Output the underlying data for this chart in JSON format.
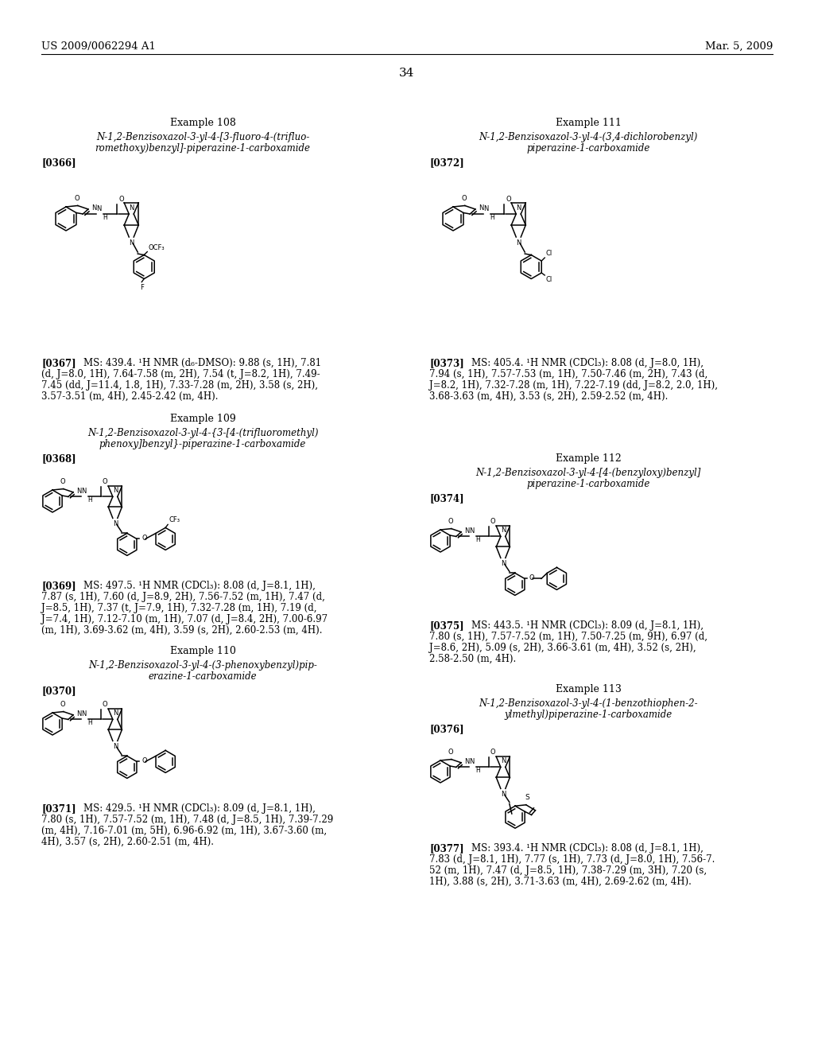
{
  "bg_color": "#ffffff",
  "header_left": "US 2009/0062294 A1",
  "header_right": "Mar. 5, 2009",
  "page_number": "34",
  "left_examples": [
    {
      "id": "108",
      "title": "Example 108",
      "name_lines": [
        "N-1,2-Benzisoxazol-3-yl-4-[3-fluoro-4-(trifluo-",
        "romethoxy)benzyl]-piperazine-1-carboxamide"
      ],
      "ref": "[0366]",
      "nmr_ref": "[0367]",
      "nmr_lines": [
        "[0367]  MS: 439.4. ¹H NMR (d₆-DMSO): 9.88 (s, 1H), 7.81",
        "(d, J=8.0, 1H), 7.64-7.58 (m, 2H), 7.54 (t, J=8.2, 1H), 7.49-",
        "7.45 (dd, J=11.4, 1.8, 1H), 7.33-7.28 (m, 2H), 3.58 (s, 2H),",
        "3.57-3.51 (m, 4H), 2.45-2.42 (m, 4H)."
      ]
    },
    {
      "id": "109",
      "title": "Example 109",
      "name_lines": [
        "N-1,2-Benzisoxazol-3-yl-4-{3-[4-(trifluoromethyl)",
        "phenoxy]benzyl}-piperazine-1-carboxamide"
      ],
      "ref": "[0368]",
      "nmr_ref": "[0369]",
      "nmr_lines": [
        "[0369]  MS: 497.5. ¹H NMR (CDCl₃): 8.08 (d, J=8.1, 1H),",
        "7.87 (s, 1H), 7.60 (d, J=8.9, 2H), 7.56-7.52 (m, 1H), 7.47 (d,",
        "J=8.5, 1H), 7.37 (t, J=7.9, 1H), 7.32-7.28 (m, 1H), 7.19 (d,",
        "J=7.4, 1H), 7.12-7.10 (m, 1H), 7.07 (d, J=8.4, 2H), 7.00-6.97",
        "(m, 1H), 3.69-3.62 (m, 4H), 3.59 (s, 2H), 2.60-2.53 (m, 4H)."
      ]
    },
    {
      "id": "110",
      "title": "Example 110",
      "name_lines": [
        "N-1,2-Benzisoxazol-3-yl-4-(3-phenoxybenzyl)pip-",
        "erazine-1-carboxamide"
      ],
      "ref": "[0370]",
      "nmr_ref": "[0371]",
      "nmr_lines": [
        "[0371]  MS: 429.5. ¹H NMR (CDCl₃): 8.09 (d, J=8.1, 1H),",
        "7.80 (s, 1H), 7.57-7.52 (m, 1H), 7.48 (d, J=8.5, 1H), 7.39-7.29",
        "(m, 4H), 7.16-7.01 (m, 5H), 6.96-6.92 (m, 1H), 3.67-3.60 (m,",
        "4H), 3.57 (s, 2H), 2.60-2.51 (m, 4H)."
      ]
    }
  ],
  "right_examples": [
    {
      "id": "111",
      "title": "Example 111",
      "name_lines": [
        "N-1,2-Benzisoxazol-3-yl-4-(3,4-dichlorobenzyl)",
        "piperazine-1-carboxamide"
      ],
      "ref": "[0372]",
      "nmr_ref": "[0373]",
      "nmr_lines": [
        "[0373]  MS: 405.4. ¹H NMR (CDCl₃): 8.08 (d, J=8.0, 1H),",
        "7.94 (s, 1H), 7.57-7.53 (m, 1H), 7.50-7.46 (m, 2H), 7.43 (d,",
        "J=8.2, 1H), 7.32-7.28 (m, 1H), 7.22-7.19 (dd, J=8.2, 2.0, 1H),",
        "3.68-3.63 (m, 4H), 3.53 (s, 2H), 2.59-2.52 (m, 4H)."
      ]
    },
    {
      "id": "112",
      "title": "Example 112",
      "name_lines": [
        "N-1,2-Benzisoxazol-3-yl-4-[4-(benzyloxy)benzyl]",
        "piperazine-1-carboxamide"
      ],
      "ref": "[0374]",
      "nmr_ref": "[0375]",
      "nmr_lines": [
        "[0375]  MS: 443.5. ¹H NMR (CDCl₃): 8.09 (d, J=8.1, 1H),",
        "7.80 (s, 1H), 7.57-7.52 (m, 1H), 7.50-7.25 (m, 9H), 6.97 (d,",
        "J=8.6, 2H), 5.09 (s, 2H), 3.66-3.61 (m, 4H), 3.52 (s, 2H),",
        "2.58-2.50 (m, 4H)."
      ]
    },
    {
      "id": "113",
      "title": "Example 113",
      "name_lines": [
        "N-1,2-Benzisoxazol-3-yl-4-(1-benzothiophen-2-",
        "ylmethyl)piperazine-1-carboxamide"
      ],
      "ref": "[0376]",
      "nmr_ref": "[0377]",
      "nmr_lines": [
        "[0377]  MS: 393.4. ¹H NMR (CDCl₃): 8.08 (d, J=8.1, 1H),",
        "7.83 (d, J=8.1, 1H), 7.77 (s, 1H), 7.73 (d, J=8.0, 1H), 7.56-7.",
        "52 (m, 1H), 7.47 (d, J=8.5, 1H), 7.38-7.29 (m, 3H), 7.20 (s,",
        "1H), 3.88 (s, 2H), 3.71-3.63 (m, 4H), 2.69-2.62 (m, 4H)."
      ]
    }
  ]
}
